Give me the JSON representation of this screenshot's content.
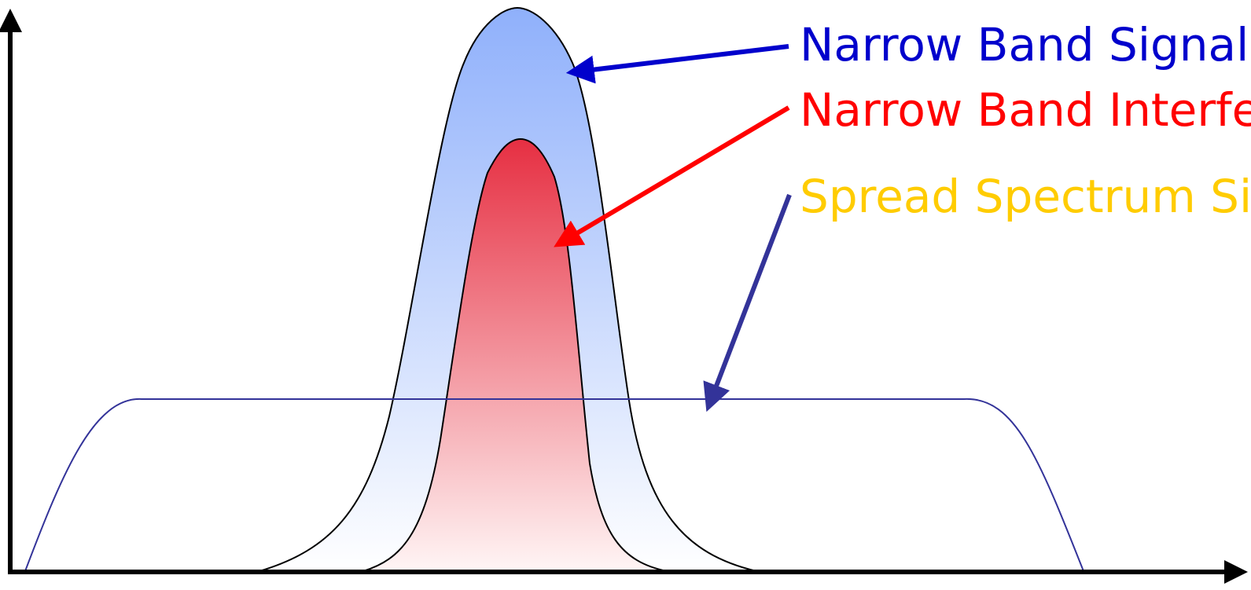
{
  "labels": {
    "narrow_band_signal": "Narrow Band Signal",
    "narrow_band_interference": "Narrow Band Interference",
    "spread_spectrum_signal": "Spread Spectrum Signal"
  },
  "colors": {
    "narrow_band_signal": "#0000cc",
    "narrow_band_interference": "#ff0000",
    "spread_spectrum_signal": "#ffcc00",
    "spread_arrow": "#333399",
    "signal_fill_top": "#8fb0fb",
    "interference_fill_top": "#e62f42",
    "axis": "#000000"
  }
}
